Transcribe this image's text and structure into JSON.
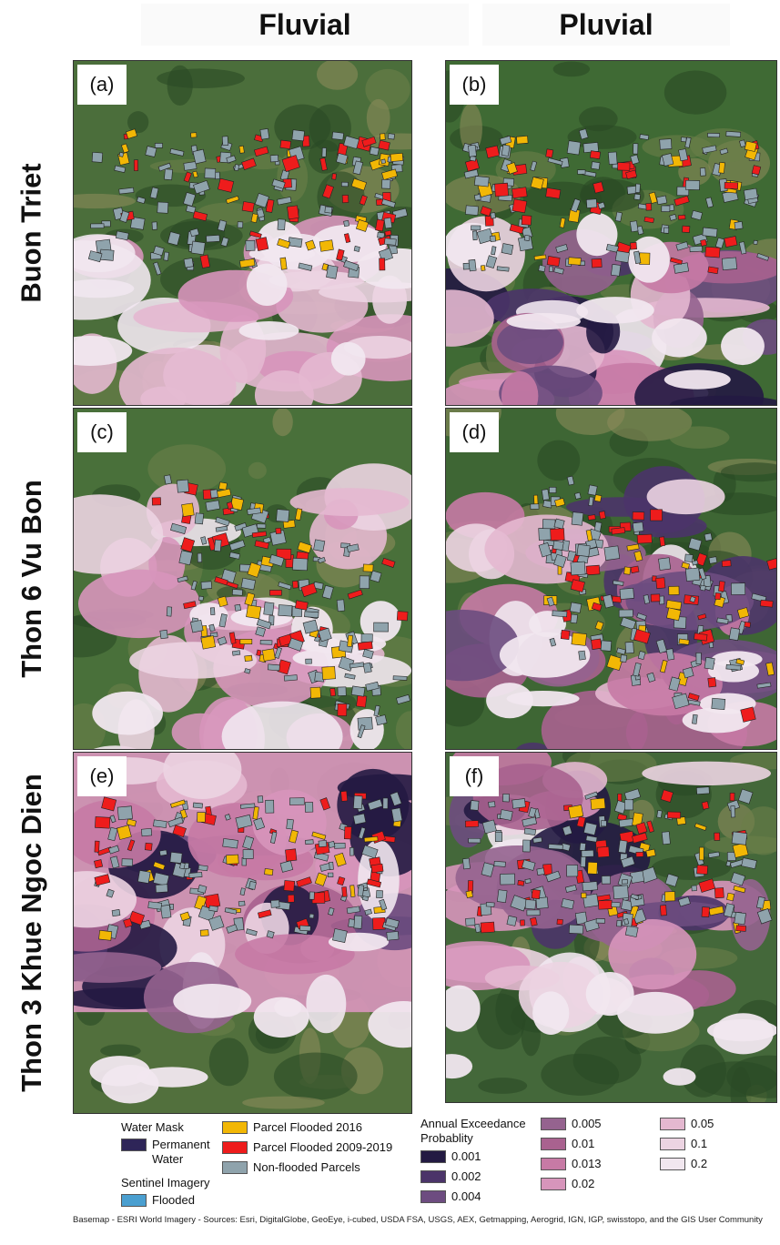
{
  "columns": [
    "Fluvial",
    "Pluvial"
  ],
  "rows": [
    "Buon Triet",
    "Thon 6 Vu Bon",
    "Thon 3 Khue Ngoc Dien"
  ],
  "panels": [
    {
      "label": "(a)",
      "row": 0,
      "col": 0
    },
    {
      "label": "(b)",
      "row": 0,
      "col": 1
    },
    {
      "label": "(c)",
      "row": 1,
      "col": 0
    },
    {
      "label": "(d)",
      "row": 1,
      "col": 1
    },
    {
      "label": "(e)",
      "row": 2,
      "col": 0
    },
    {
      "label": "(f)",
      "row": 2,
      "col": 1
    }
  ],
  "legend": {
    "water_mask_title": "Water Mask",
    "permanent_water": "Permanent Water",
    "sentinel_title": "Sentinel Imagery",
    "flooded": "Flooded",
    "parcel_2016": "Parcel Flooded 2016",
    "parcel_2009_2019": "Parcel Flooded 2009-2019",
    "non_flooded": "Non-flooded Parcels",
    "aep_title": "Annual Exceedance Probablity",
    "aep_classes": [
      "0.001",
      "0.002",
      "0.004",
      "0.005",
      "0.01",
      "0.013",
      "0.02",
      "0.05",
      "0.1",
      "0.2"
    ]
  },
  "colors": {
    "permanent_water": "#2e2558",
    "flooded": "#4a9fd0",
    "parcel_2016": "#f2b705",
    "parcel_2009_2019": "#ee1c1c",
    "non_flooded": "#8fa3ac",
    "aep": [
      "#231a42",
      "#4b3469",
      "#6d4c80",
      "#95638f",
      "#a9628f",
      "#c77aa5",
      "#d795bb",
      "#e4b8d0",
      "#ecd4e2",
      "#f1e7ef"
    ],
    "vegetation": "#3f6a34",
    "vegetation_dark": "#2a4a25"
  },
  "basemap_credit": "Basemap - ESRI World Imagery - Sources: Esri, DigitalGlobe, GeoEye, i-cubed, USDA FSA, USGS, AEX, Getmapping, Aerogrid, IGN, IGP, swisstopo, and the GIS User Community"
}
